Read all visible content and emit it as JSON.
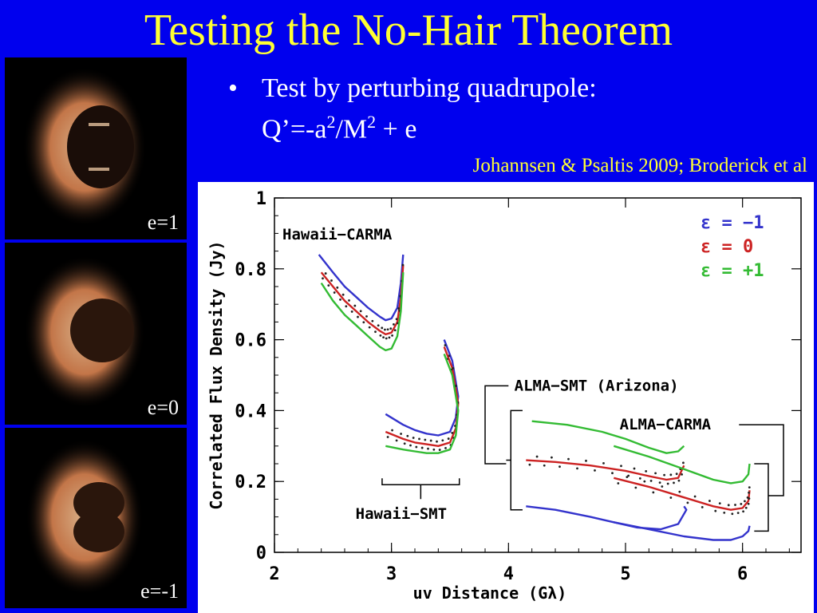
{
  "slide": {
    "title": "Testing the No-Hair Theorem",
    "bullet_marker": "•",
    "bullet_line1": "Test by perturbing quadrupole:",
    "formula": {
      "q": "Q’=-a",
      "sup1": "2",
      "slash": "/M",
      "sup2": "2",
      "rest": " + e"
    },
    "citation": "Johannsen & Psaltis 2009; Broderick et al"
  },
  "thumbnails": [
    {
      "label": "e=1"
    },
    {
      "label": "e=0"
    },
    {
      "label": "e=-1"
    }
  ],
  "colors": {
    "background": "#0000ee",
    "title": "#ffff33",
    "eps_minus1": "#3333cc",
    "eps_0": "#cc2222",
    "eps_plus1": "#33bb33"
  },
  "chart_data": {
    "type": "line",
    "xlabel": "uv Distance (Gλ)",
    "ylabel": "Correlated Flux Density (Jy)",
    "xlim": [
      2,
      6.5
    ],
    "ylim": [
      0,
      1
    ],
    "xticks": [
      "2",
      "3",
      "4",
      "5",
      "6"
    ],
    "yticks": [
      "0",
      "0.2",
      "0.4",
      "0.6",
      "0.8",
      "1"
    ],
    "legend": {
      "placement": "top-right",
      "entries": [
        {
          "label": "ε = −1",
          "color": "#3333cc"
        },
        {
          "label": "ε = 0",
          "color": "#cc2222"
        },
        {
          "label": "ε = +1",
          "color": "#33bb33"
        }
      ]
    },
    "annotations": [
      "Hawaii−CARMA",
      "Hawaii−SMT",
      "ALMA−SMT (Arizona)",
      "ALMA−CARMA"
    ],
    "series": [
      {
        "baseline": "Hawaii−CARMA",
        "color": "#3333cc",
        "x": [
          2.38,
          2.5,
          2.6,
          2.7,
          2.8,
          2.9,
          2.95,
          3.0,
          3.05,
          3.08,
          3.1
        ],
        "y": [
          0.84,
          0.79,
          0.75,
          0.72,
          0.69,
          0.665,
          0.655,
          0.66,
          0.69,
          0.76,
          0.84
        ]
      },
      {
        "baseline": "Hawaii−CARMA",
        "color": "#cc2222",
        "x": [
          2.4,
          2.5,
          2.6,
          2.7,
          2.8,
          2.9,
          2.95,
          3.0,
          3.05,
          3.08,
          3.1
        ],
        "y": [
          0.79,
          0.75,
          0.71,
          0.68,
          0.65,
          0.625,
          0.615,
          0.62,
          0.65,
          0.72,
          0.81
        ]
      },
      {
        "baseline": "Hawaii−CARMA",
        "color": "#33bb33",
        "x": [
          2.4,
          2.5,
          2.6,
          2.7,
          2.8,
          2.9,
          2.95,
          3.0,
          3.05,
          3.08,
          3.1
        ],
        "y": [
          0.76,
          0.71,
          0.67,
          0.64,
          0.61,
          0.58,
          0.57,
          0.575,
          0.61,
          0.68,
          0.79
        ]
      },
      {
        "baseline": "Hawaii−SMT",
        "color": "#3333cc",
        "x": [
          2.95,
          3.1,
          3.2,
          3.3,
          3.4,
          3.5,
          3.55,
          3.57,
          3.52,
          3.45
        ],
        "y": [
          0.39,
          0.36,
          0.345,
          0.335,
          0.33,
          0.34,
          0.38,
          0.44,
          0.54,
          0.6
        ]
      },
      {
        "baseline": "Hawaii−SMT",
        "color": "#cc2222",
        "x": [
          2.95,
          3.1,
          3.2,
          3.3,
          3.4,
          3.5,
          3.55,
          3.57,
          3.52,
          3.45
        ],
        "y": [
          0.34,
          0.32,
          0.31,
          0.305,
          0.3,
          0.31,
          0.35,
          0.42,
          0.52,
          0.58
        ]
      },
      {
        "baseline": "Hawaii−SMT",
        "color": "#33bb33",
        "x": [
          2.95,
          3.1,
          3.2,
          3.3,
          3.4,
          3.5,
          3.55,
          3.57,
          3.52,
          3.45
        ],
        "y": [
          0.3,
          0.29,
          0.285,
          0.28,
          0.28,
          0.29,
          0.33,
          0.4,
          0.5,
          0.56
        ]
      },
      {
        "baseline": "ALMA−SMT (Arizona)",
        "color": "#33bb33",
        "x": [
          4.2,
          4.5,
          4.8,
          5.0,
          5.2,
          5.35,
          5.45,
          5.5
        ],
        "y": [
          0.37,
          0.36,
          0.34,
          0.32,
          0.295,
          0.28,
          0.285,
          0.3
        ]
      },
      {
        "baseline": "ALMA−SMT (Arizona)",
        "color": "#cc2222",
        "x": [
          4.15,
          4.4,
          4.7,
          5.0,
          5.2,
          5.35,
          5.45,
          5.5
        ],
        "y": [
          0.26,
          0.255,
          0.245,
          0.23,
          0.215,
          0.205,
          0.21,
          0.245
        ]
      },
      {
        "baseline": "ALMA−SMT (Arizona)",
        "color": "#3333cc",
        "x": [
          4.15,
          4.4,
          4.7,
          4.9,
          5.1,
          5.3,
          5.45,
          5.52,
          5.5
        ],
        "y": [
          0.13,
          0.12,
          0.1,
          0.085,
          0.07,
          0.065,
          0.08,
          0.12,
          0.13
        ]
      },
      {
        "baseline": "ALMA−CARMA",
        "color": "#33bb33",
        "x": [
          4.9,
          5.2,
          5.5,
          5.75,
          5.9,
          6.0,
          6.05,
          6.06
        ],
        "y": [
          0.3,
          0.27,
          0.235,
          0.205,
          0.195,
          0.2,
          0.22,
          0.25
        ]
      },
      {
        "baseline": "ALMA−CARMA",
        "color": "#cc2222",
        "x": [
          4.9,
          5.2,
          5.5,
          5.75,
          5.9,
          6.0,
          6.05,
          6.06
        ],
        "y": [
          0.21,
          0.185,
          0.155,
          0.13,
          0.12,
          0.125,
          0.145,
          0.175
        ]
      },
      {
        "baseline": "ALMA−CARMA",
        "color": "#3333cc",
        "x": [
          4.9,
          5.2,
          5.5,
          5.75,
          5.9,
          6.0,
          6.05,
          6.06
        ],
        "y": [
          0.085,
          0.065,
          0.045,
          0.035,
          0.035,
          0.045,
          0.06,
          0.075
        ]
      }
    ]
  }
}
